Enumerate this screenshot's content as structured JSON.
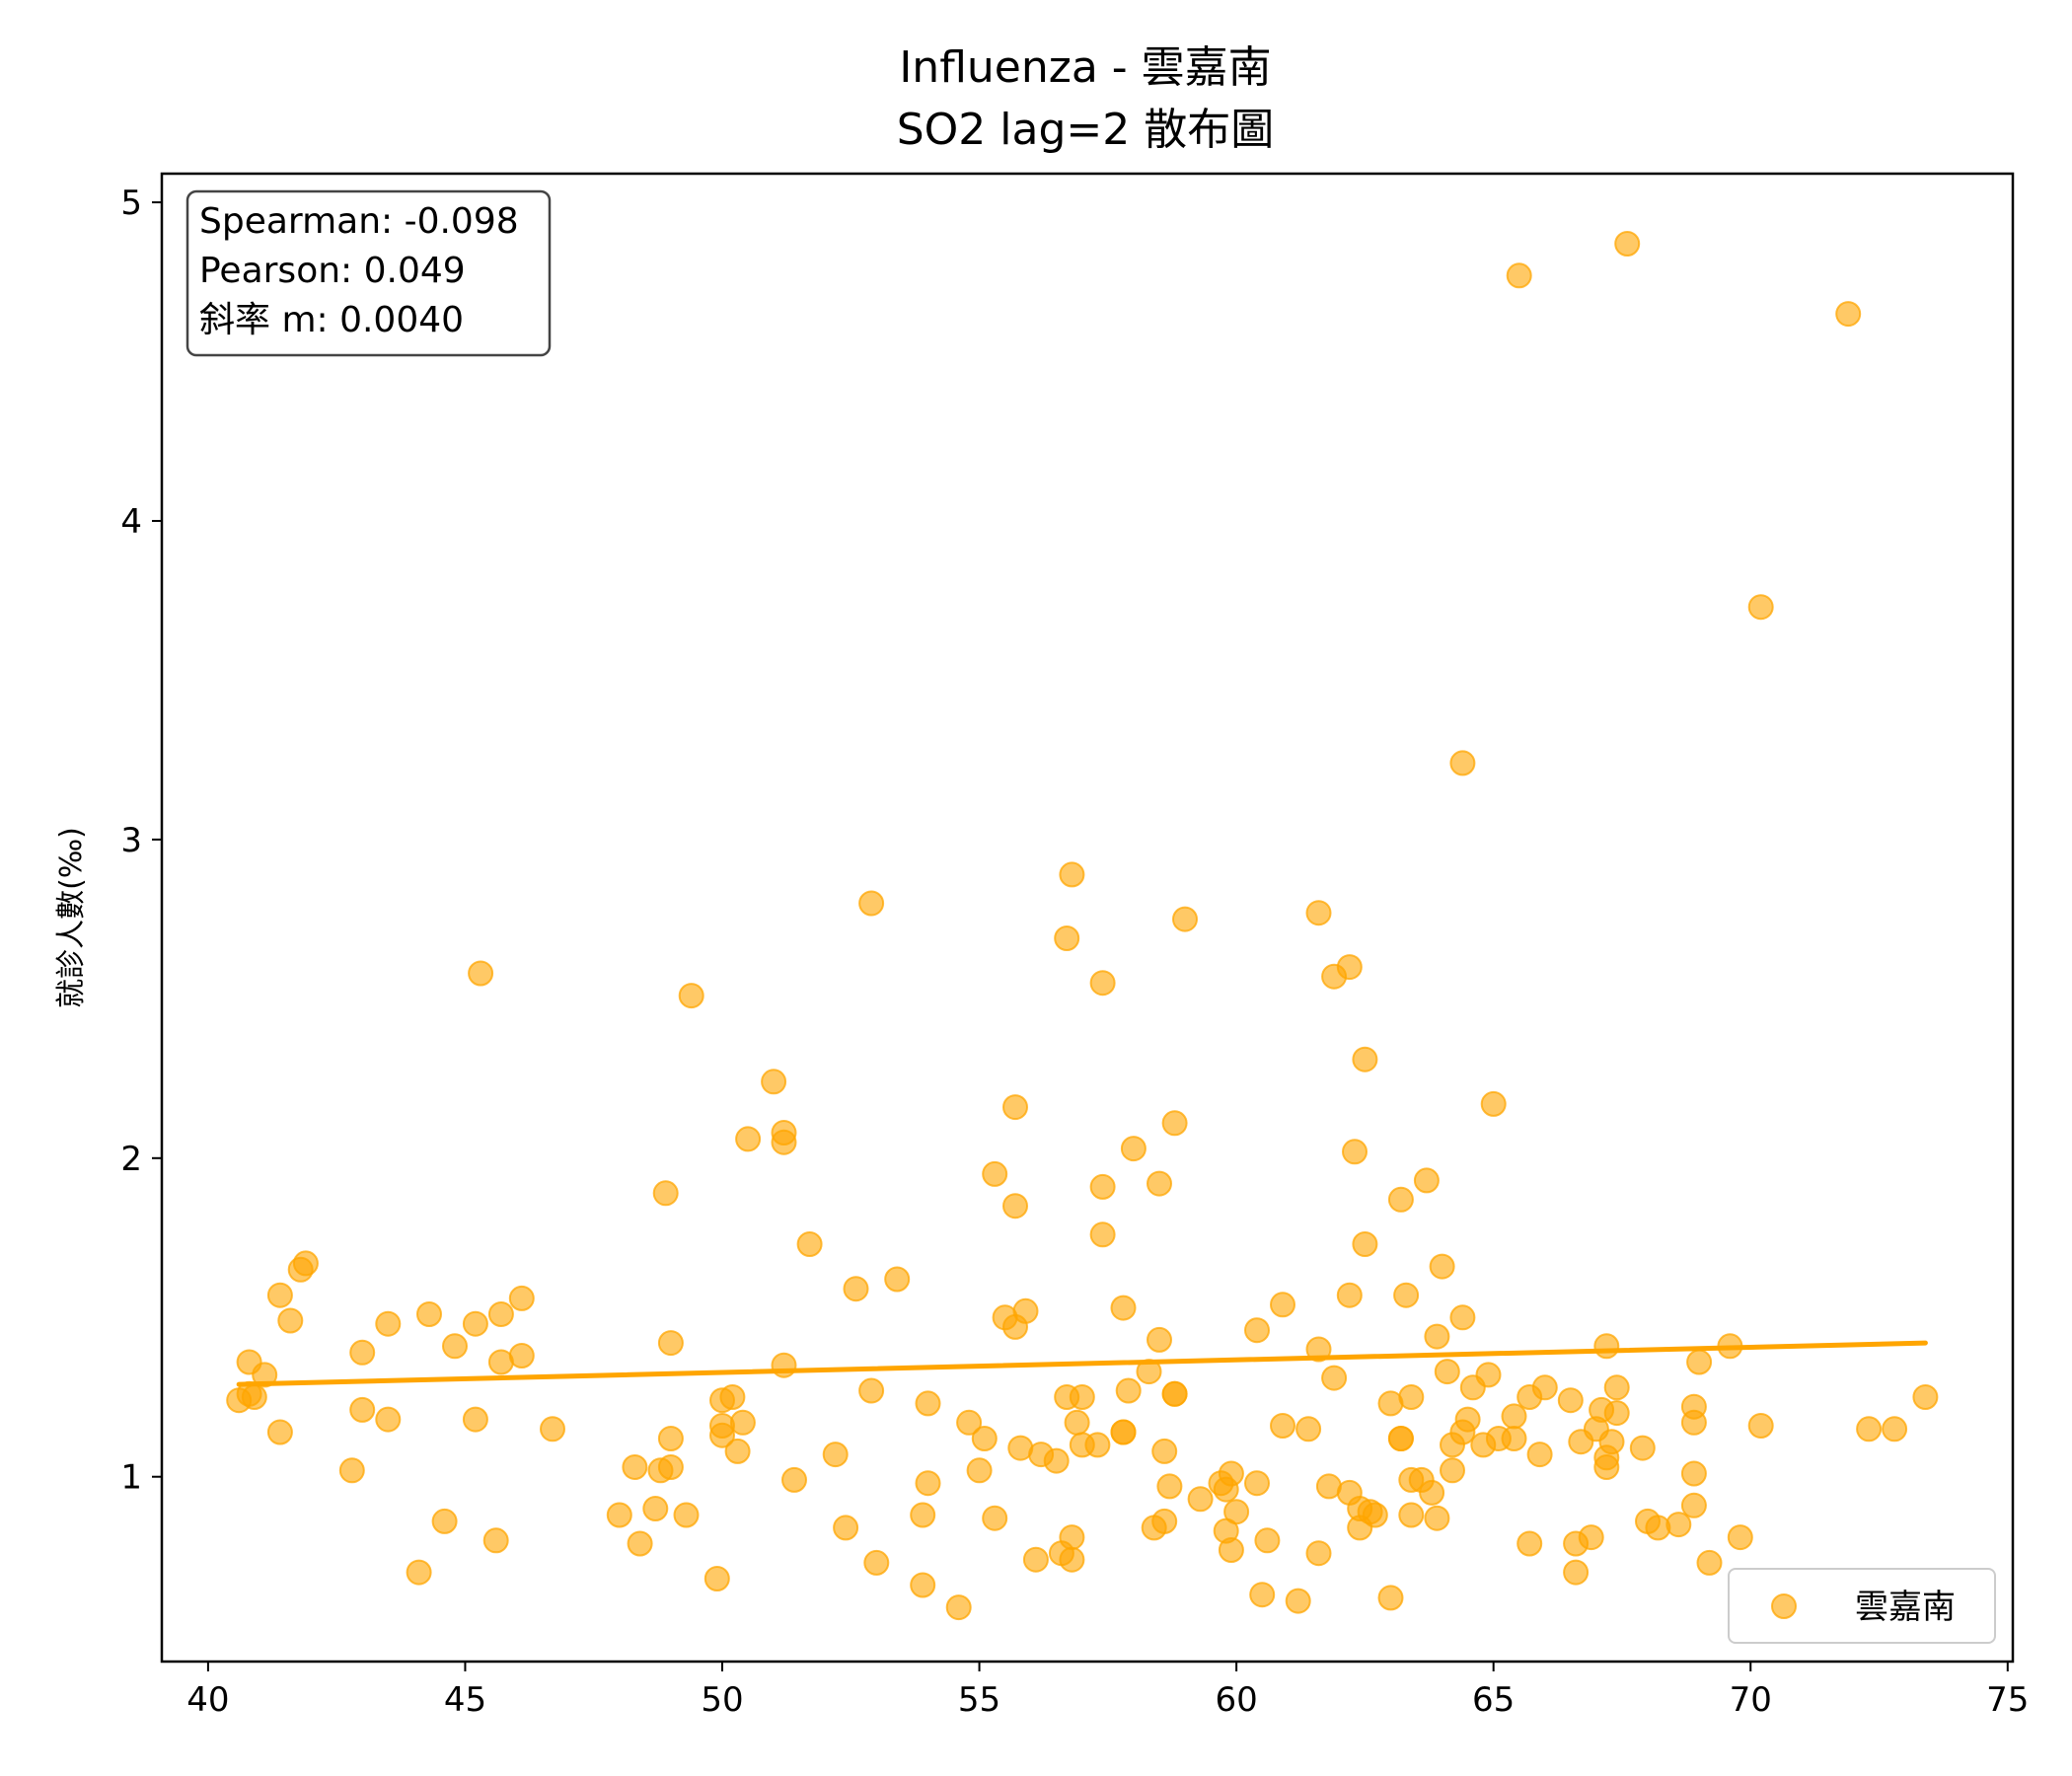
{
  "chart_data": {
    "type": "scatter",
    "title_line1": "Influenza - 雲嘉南",
    "title_line2": "SO2 lag=2 散布圖",
    "xlabel": "",
    "ylabel": "就診人數(‰)",
    "xlim": [
      39.1,
      75.1
    ],
    "ylim": [
      0.42,
      5.09
    ],
    "xticks": [
      40,
      45,
      50,
      55,
      60,
      65,
      70,
      75
    ],
    "yticks": [
      1,
      2,
      3,
      4,
      5
    ],
    "grid": false,
    "legend_placement": "lower-right",
    "point_color": "#FFA500",
    "stats": {
      "spearman": "Spearman: -0.098",
      "pearson": "Pearson: 0.049",
      "slope": "斜率 m: 0.0040"
    },
    "regression_line": {
      "x": [
        40.6,
        73.4
      ],
      "y": [
        1.29,
        1.42
      ]
    },
    "series": [
      {
        "name": "雲嘉南",
        "points": [
          [
            40.6,
            1.24
          ],
          [
            40.8,
            1.26
          ],
          [
            40.8,
            1.36
          ],
          [
            40.9,
            1.25
          ],
          [
            41.1,
            1.32
          ],
          [
            41.4,
            1.14
          ],
          [
            41.4,
            1.57
          ],
          [
            41.6,
            1.49
          ],
          [
            41.8,
            1.65
          ],
          [
            41.9,
            1.67
          ],
          [
            42.8,
            1.02
          ],
          [
            43.0,
            1.39
          ],
          [
            43.0,
            1.21
          ],
          [
            43.5,
            1.48
          ],
          [
            43.5,
            1.18
          ],
          [
            44.1,
            0.7
          ],
          [
            44.3,
            1.51
          ],
          [
            44.6,
            0.86
          ],
          [
            44.8,
            1.41
          ],
          [
            45.2,
            1.48
          ],
          [
            45.2,
            1.18
          ],
          [
            45.3,
            2.58
          ],
          [
            45.6,
            0.8
          ],
          [
            45.7,
            1.51
          ],
          [
            45.7,
            1.36
          ],
          [
            46.1,
            1.38
          ],
          [
            46.1,
            1.56
          ],
          [
            46.7,
            1.15
          ],
          [
            48.0,
            0.88
          ],
          [
            48.3,
            1.03
          ],
          [
            48.4,
            0.79
          ],
          [
            48.7,
            0.9
          ],
          [
            48.8,
            1.02
          ],
          [
            48.9,
            1.89
          ],
          [
            49.0,
            1.12
          ],
          [
            49.0,
            1.03
          ],
          [
            49.0,
            1.42
          ],
          [
            49.3,
            0.88
          ],
          [
            49.4,
            2.51
          ],
          [
            49.9,
            0.68
          ],
          [
            50.0,
            1.13
          ],
          [
            50.0,
            1.16
          ],
          [
            50.0,
            1.24
          ],
          [
            50.2,
            1.25
          ],
          [
            50.3,
            1.08
          ],
          [
            50.4,
            1.17
          ],
          [
            50.5,
            2.06
          ],
          [
            51.0,
            2.24
          ],
          [
            51.2,
            2.08
          ],
          [
            51.2,
            2.05
          ],
          [
            51.2,
            1.35
          ],
          [
            51.4,
            0.99
          ],
          [
            51.7,
            1.73
          ],
          [
            52.2,
            1.07
          ],
          [
            52.4,
            0.84
          ],
          [
            52.6,
            1.59
          ],
          [
            52.9,
            2.8
          ],
          [
            52.9,
            1.27
          ],
          [
            53.0,
            0.73
          ],
          [
            53.4,
            1.62
          ],
          [
            53.9,
            0.66
          ],
          [
            53.9,
            0.88
          ],
          [
            54.0,
            1.23
          ],
          [
            54.0,
            0.98
          ],
          [
            54.6,
            0.59
          ],
          [
            54.8,
            1.17
          ],
          [
            55.0,
            1.02
          ],
          [
            55.1,
            1.12
          ],
          [
            55.3,
            0.87
          ],
          [
            55.3,
            1.95
          ],
          [
            55.5,
            1.5
          ],
          [
            55.7,
            1.47
          ],
          [
            55.7,
            1.85
          ],
          [
            55.7,
            2.16
          ],
          [
            55.8,
            1.09
          ],
          [
            55.9,
            1.52
          ],
          [
            56.1,
            0.74
          ],
          [
            56.2,
            1.07
          ],
          [
            56.5,
            1.05
          ],
          [
            56.6,
            0.76
          ],
          [
            56.7,
            2.69
          ],
          [
            56.7,
            1.25
          ],
          [
            56.8,
            0.81
          ],
          [
            56.8,
            0.74
          ],
          [
            56.8,
            2.89
          ],
          [
            56.9,
            1.17
          ],
          [
            57.0,
            1.25
          ],
          [
            57.0,
            1.1
          ],
          [
            57.3,
            1.1
          ],
          [
            57.4,
            2.55
          ],
          [
            57.4,
            1.76
          ],
          [
            57.4,
            1.91
          ],
          [
            57.8,
            1.53
          ],
          [
            57.8,
            1.14
          ],
          [
            57.8,
            1.14
          ],
          [
            57.9,
            1.27
          ],
          [
            58.0,
            2.03
          ],
          [
            58.3,
            1.33
          ],
          [
            58.4,
            0.84
          ],
          [
            58.5,
            1.92
          ],
          [
            58.5,
            1.43
          ],
          [
            58.6,
            0.86
          ],
          [
            58.6,
            1.08
          ],
          [
            58.7,
            0.97
          ],
          [
            58.8,
            2.11
          ],
          [
            58.8,
            1.26
          ],
          [
            58.8,
            1.26
          ],
          [
            59.0,
            2.75
          ],
          [
            59.3,
            0.93
          ],
          [
            59.7,
            0.98
          ],
          [
            59.8,
            0.83
          ],
          [
            59.8,
            0.96
          ],
          [
            59.9,
            1.01
          ],
          [
            59.9,
            0.77
          ],
          [
            60.0,
            0.89
          ],
          [
            60.4,
            1.46
          ],
          [
            60.4,
            0.98
          ],
          [
            60.5,
            0.63
          ],
          [
            60.6,
            0.8
          ],
          [
            60.9,
            1.16
          ],
          [
            60.9,
            1.54
          ],
          [
            61.2,
            0.61
          ],
          [
            61.4,
            1.15
          ],
          [
            61.6,
            2.77
          ],
          [
            61.6,
            0.76
          ],
          [
            61.6,
            1.4
          ],
          [
            61.8,
            0.97
          ],
          [
            61.9,
            2.57
          ],
          [
            61.9,
            1.31
          ],
          [
            62.2,
            2.6
          ],
          [
            62.2,
            0.95
          ],
          [
            62.2,
            1.57
          ],
          [
            62.3,
            2.02
          ],
          [
            62.4,
            0.9
          ],
          [
            62.4,
            0.84
          ],
          [
            62.5,
            1.73
          ],
          [
            62.5,
            2.31
          ],
          [
            62.6,
            0.89
          ],
          [
            62.7,
            0.88
          ],
          [
            63.0,
            0.62
          ],
          [
            63.0,
            1.23
          ],
          [
            63.2,
            1.12
          ],
          [
            63.2,
            1.12
          ],
          [
            63.2,
            1.87
          ],
          [
            63.3,
            1.57
          ],
          [
            63.4,
            0.88
          ],
          [
            63.4,
            0.99
          ],
          [
            63.4,
            1.25
          ],
          [
            63.6,
            0.99
          ],
          [
            63.7,
            1.93
          ],
          [
            63.8,
            0.95
          ],
          [
            63.9,
            1.44
          ],
          [
            63.9,
            0.87
          ],
          [
            64.0,
            1.66
          ],
          [
            64.1,
            1.33
          ],
          [
            64.2,
            1.02
          ],
          [
            64.2,
            1.1
          ],
          [
            64.4,
            1.5
          ],
          [
            64.4,
            3.24
          ],
          [
            64.4,
            1.14
          ],
          [
            64.5,
            1.18
          ],
          [
            64.6,
            1.28
          ],
          [
            64.8,
            1.1
          ],
          [
            64.9,
            1.32
          ],
          [
            65.0,
            2.17
          ],
          [
            65.1,
            1.12
          ],
          [
            65.4,
            1.12
          ],
          [
            65.4,
            1.19
          ],
          [
            65.5,
            4.77
          ],
          [
            65.7,
            1.25
          ],
          [
            65.7,
            0.79
          ],
          [
            65.9,
            1.07
          ],
          [
            66.0,
            1.28
          ],
          [
            66.5,
            1.24
          ],
          [
            66.6,
            0.7
          ],
          [
            66.6,
            0.79
          ],
          [
            66.7,
            1.11
          ],
          [
            66.9,
            0.81
          ],
          [
            67.0,
            1.15
          ],
          [
            67.1,
            1.21
          ],
          [
            67.2,
            1.03
          ],
          [
            67.2,
            1.06
          ],
          [
            67.2,
            1.41
          ],
          [
            67.3,
            1.11
          ],
          [
            67.4,
            1.28
          ],
          [
            67.4,
            1.2
          ],
          [
            67.6,
            4.87
          ],
          [
            67.9,
            1.09
          ],
          [
            68.0,
            0.86
          ],
          [
            68.2,
            0.84
          ],
          [
            68.6,
            0.85
          ],
          [
            68.9,
            1.22
          ],
          [
            68.9,
            1.17
          ],
          [
            68.9,
            1.01
          ],
          [
            68.9,
            0.91
          ],
          [
            69.0,
            1.36
          ],
          [
            69.2,
            0.73
          ],
          [
            69.6,
            1.41
          ],
          [
            69.8,
            0.81
          ],
          [
            70.2,
            3.73
          ],
          [
            70.2,
            1.16
          ],
          [
            71.9,
            4.65
          ],
          [
            72.3,
            1.15
          ],
          [
            72.8,
            1.15
          ],
          [
            73.4,
            1.25
          ]
        ]
      }
    ]
  }
}
